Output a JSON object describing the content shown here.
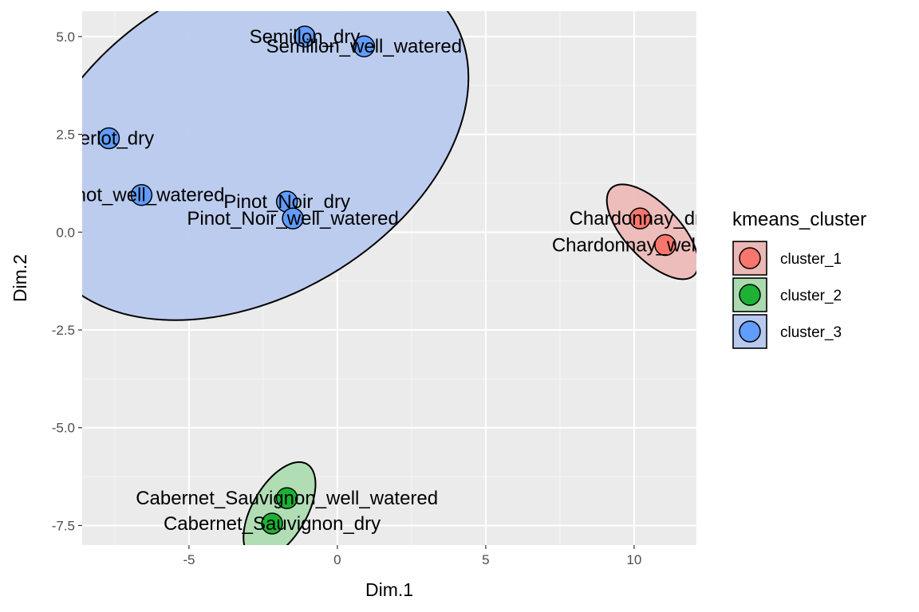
{
  "chart_data": {
    "type": "scatter",
    "xlabel": "Dim.1",
    "ylabel": "Dim.2",
    "xlim": [
      -8.6,
      12.1
    ],
    "ylim": [
      -8.0,
      5.65
    ],
    "x_ticks": [
      -5,
      0,
      5,
      10
    ],
    "x_tick_labels": [
      "-5",
      "0",
      "5",
      "10"
    ],
    "y_ticks": [
      -7.5,
      -5.0,
      -2.5,
      0.0,
      2.5,
      5.0
    ],
    "y_tick_labels": [
      "-7.5",
      "-5.0",
      "-2.5",
      "0.0",
      "2.5",
      "5.0"
    ],
    "grid": true,
    "legend": {
      "title": "kmeans_cluster",
      "placement": "right",
      "entries": [
        {
          "label": "cluster_1",
          "color": "#F8766D",
          "fill": "#EBB8B5"
        },
        {
          "label": "cluster_2",
          "color": "#1DB233",
          "fill": "#AADBAF"
        },
        {
          "label": "cluster_3",
          "color": "#619CFF",
          "fill": "#B7C9EE"
        }
      ]
    },
    "points": [
      {
        "label": "Semillon_dry",
        "x": -1.1,
        "y": 5.0,
        "cluster": 2
      },
      {
        "label": "Semillon_well_watered",
        "x": 0.9,
        "y": 4.75,
        "cluster": 2
      },
      {
        "label": "Merlot_dry",
        "x": -7.7,
        "y": 2.4,
        "cluster": 2
      },
      {
        "label": "Pinot_well_watered",
        "x": -6.6,
        "y": 0.95,
        "cluster": 2
      },
      {
        "label": "Pinot_Noir_dry",
        "x": -1.7,
        "y": 0.78,
        "cluster": 2
      },
      {
        "label": "Pinot_Noir_well_watered",
        "x": -1.5,
        "y": 0.35,
        "cluster": 2
      },
      {
        "label": "Chardonnay_dry",
        "x": 10.2,
        "y": 0.35,
        "cluster": 0
      },
      {
        "label": "Chardonnay_well_watered",
        "x": 11.05,
        "y": -0.33,
        "cluster": 0
      },
      {
        "label": "Cabernet_Sauvignon_well_watered",
        "x": -1.7,
        "y": -6.8,
        "cluster": 1
      },
      {
        "label": "Cabernet_Sauvignon_dry",
        "x": -2.2,
        "y": -7.45,
        "cluster": 1
      }
    ]
  }
}
